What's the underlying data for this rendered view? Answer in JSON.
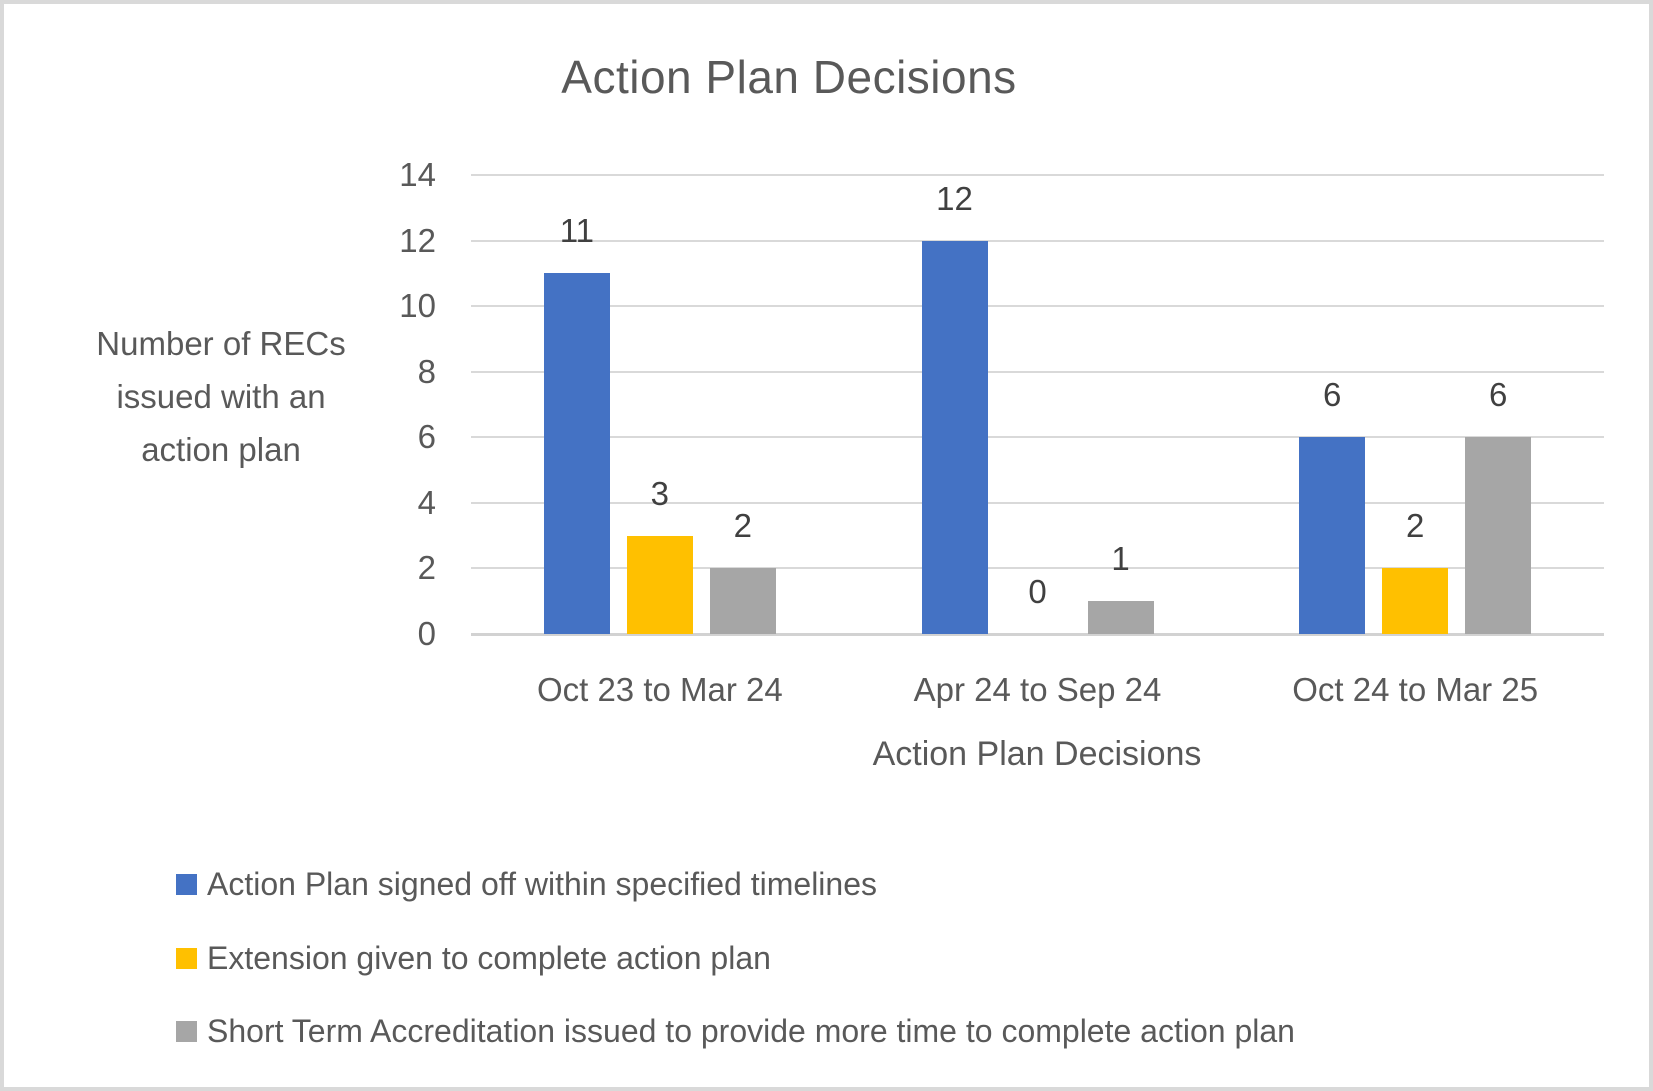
{
  "chart_title": "Action Plan Decisions",
  "chart_data": {
    "type": "bar",
    "title": "Action Plan Decisions",
    "categories": [
      "Oct 23 to Mar 24",
      "Apr 24 to Sep 24",
      "Oct 24 to Mar 25"
    ],
    "series": [
      {
        "name": "Action Plan signed off within specified timelines",
        "color": "#4472C4",
        "values": [
          11,
          12,
          6
        ]
      },
      {
        "name": "Extension given to complete action plan",
        "color": "#FFC000",
        "values": [
          3,
          0,
          2
        ]
      },
      {
        "name": "Short Term Accreditation issued to provide more time to complete action plan",
        "color": "#A6A6A6",
        "values": [
          2,
          1,
          6
        ]
      }
    ],
    "data_labels": [
      [
        11,
        3,
        2
      ],
      [
        12,
        0,
        1
      ],
      [
        6,
        2,
        6
      ]
    ],
    "xlabel": "Action Plan Decisions",
    "ylabel": "Number of RECs issued with an action plan",
    "ylim": [
      0,
      14
    ],
    "yticks": [
      0,
      2,
      4,
      6,
      8,
      10,
      12,
      14
    ],
    "grid": true,
    "legend_position": "bottom-left",
    "colors": {
      "axis_text": "#595959",
      "data_label_text": "#404040",
      "gridline": "#D9D9D9",
      "frame_border": "#D9D9D9",
      "background": "#FFFFFF"
    }
  }
}
